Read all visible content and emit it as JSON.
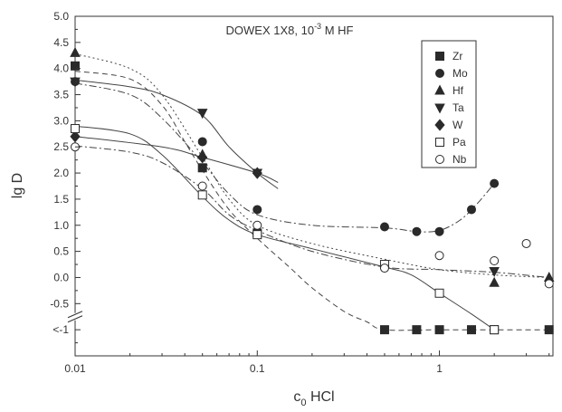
{
  "chart_data": {
    "type": "scatter",
    "annotation": {
      "main": "DOWEX 1X8, 10",
      "sup": "-3",
      "tail": " M HF"
    },
    "xlabel": {
      "main": "c",
      "sub": "0",
      "tail": " HCl"
    },
    "ylabel": "lg D",
    "x_scale": "log",
    "xlim": [
      0.01,
      4.2
    ],
    "ylim": [
      -1.5,
      5.0
    ],
    "x_ticks": [
      {
        "v": 0.01,
        "label": "0.01"
      },
      {
        "v": 0.1,
        "label": "0.1"
      },
      {
        "v": 1,
        "label": "1"
      }
    ],
    "y_ticks": [
      {
        "v": 5.0,
        "label": "5.0"
      },
      {
        "v": 4.5,
        "label": "4.5"
      },
      {
        "v": 4.0,
        "label": "4.0"
      },
      {
        "v": 3.5,
        "label": "3.5"
      },
      {
        "v": 3.0,
        "label": "3.0"
      },
      {
        "v": 2.5,
        "label": "2.5"
      },
      {
        "v": 2.0,
        "label": "2.0"
      },
      {
        "v": 1.5,
        "label": "1.5"
      },
      {
        "v": 1.0,
        "label": "1.0"
      },
      {
        "v": 0.5,
        "label": "0.5"
      },
      {
        "v": 0.0,
        "label": "0.0"
      },
      {
        "v": -0.5,
        "label": "-0.5"
      },
      {
        "v": -1.0,
        "label": "<-1"
      }
    ],
    "axis_break_y": -0.75,
    "legend_position": "top-right",
    "series": [
      {
        "name": "Zr",
        "marker": "square-filled",
        "points": [
          [
            0.01,
            4.05
          ],
          [
            0.05,
            2.1
          ],
          [
            0.1,
            0.85
          ],
          [
            0.5,
            -1.0
          ],
          [
            0.75,
            -1.0
          ],
          [
            1.0,
            -1.0
          ],
          [
            1.5,
            -1.0
          ],
          [
            2.0,
            -1.0
          ],
          [
            4.0,
            -1.0
          ]
        ],
        "curve": [
          [
            0.01,
            3.95
          ],
          [
            0.02,
            3.8
          ],
          [
            0.03,
            3.3
          ],
          [
            0.04,
            2.6
          ],
          [
            0.05,
            2.05
          ],
          [
            0.07,
            1.3
          ],
          [
            0.1,
            0.75
          ],
          [
            0.15,
            0.2
          ],
          [
            0.2,
            -0.2
          ],
          [
            0.3,
            -0.65
          ],
          [
            0.4,
            -0.85
          ],
          [
            0.5,
            -1.0
          ],
          [
            1.0,
            -1.0
          ],
          [
            2.0,
            -1.0
          ],
          [
            4.0,
            -1.0
          ]
        ],
        "dash": "6,4"
      },
      {
        "name": "Mo",
        "marker": "circle-filled",
        "points": [
          [
            0.01,
            3.75
          ],
          [
            0.05,
            2.6
          ],
          [
            0.1,
            1.3
          ],
          [
            0.5,
            0.97
          ],
          [
            0.75,
            0.88
          ],
          [
            1.0,
            0.88
          ],
          [
            1.5,
            1.3
          ],
          [
            2.0,
            1.8
          ]
        ],
        "curve": [
          [
            0.01,
            3.72
          ],
          [
            0.02,
            3.5
          ],
          [
            0.03,
            3.05
          ],
          [
            0.05,
            2.2
          ],
          [
            0.07,
            1.6
          ],
          [
            0.1,
            1.2
          ],
          [
            0.2,
            1.0
          ],
          [
            0.5,
            0.95
          ],
          [
            0.75,
            0.88
          ],
          [
            1.0,
            0.9
          ],
          [
            1.3,
            1.1
          ],
          [
            1.6,
            1.4
          ],
          [
            2.0,
            1.8
          ]
        ],
        "dash": "8,3,2,3"
      },
      {
        "name": "Hf",
        "marker": "triangle-up-filled",
        "points": [
          [
            0.01,
            4.3
          ],
          [
            0.05,
            2.35
          ],
          [
            2.0,
            -0.1
          ],
          [
            4.0,
            0.0
          ]
        ],
        "curve": [
          [
            0.01,
            4.28
          ],
          [
            0.02,
            4.0
          ],
          [
            0.03,
            3.5
          ],
          [
            0.05,
            2.3
          ],
          [
            0.07,
            1.5
          ],
          [
            0.1,
            1.0
          ],
          [
            0.2,
            0.65
          ],
          [
            0.5,
            0.35
          ],
          [
            1.0,
            0.15
          ],
          [
            2.0,
            0.05
          ],
          [
            4.0,
            0.0
          ]
        ],
        "dash": "2,3"
      },
      {
        "name": "Ta",
        "marker": "triangle-down-filled",
        "points": [
          [
            0.01,
            3.75
          ],
          [
            0.05,
            3.15
          ],
          [
            0.1,
            2.0
          ],
          [
            2.0,
            0.12
          ]
        ],
        "curve": [
          [
            0.01,
            3.78
          ],
          [
            0.02,
            3.65
          ],
          [
            0.03,
            3.5
          ],
          [
            0.05,
            3.1
          ],
          [
            0.07,
            2.5
          ],
          [
            0.1,
            2.0
          ],
          [
            0.13,
            1.7
          ]
        ],
        "dash": ""
      },
      {
        "name": "W",
        "marker": "diamond-filled",
        "points": [
          [
            0.01,
            2.7
          ],
          [
            0.05,
            2.3
          ],
          [
            0.1,
            2.0
          ]
        ],
        "curve": [
          [
            0.01,
            2.7
          ],
          [
            0.03,
            2.5
          ],
          [
            0.05,
            2.3
          ],
          [
            0.1,
            2.0
          ],
          [
            0.13,
            1.82
          ]
        ],
        "dash": ""
      },
      {
        "name": "Pa",
        "marker": "square-open",
        "points": [
          [
            0.01,
            2.85
          ],
          [
            0.05,
            1.58
          ],
          [
            0.1,
            0.82
          ],
          [
            0.5,
            0.25
          ],
          [
            1.0,
            -0.3
          ],
          [
            2.0,
            -1.0
          ]
        ],
        "curve": [
          [
            0.01,
            2.9
          ],
          [
            0.02,
            2.75
          ],
          [
            0.03,
            2.35
          ],
          [
            0.05,
            1.55
          ],
          [
            0.07,
            1.1
          ],
          [
            0.1,
            0.82
          ],
          [
            0.2,
            0.55
          ],
          [
            0.5,
            0.2
          ],
          [
            0.7,
            0.05
          ],
          [
            1.0,
            -0.3
          ],
          [
            1.5,
            -0.7
          ],
          [
            2.0,
            -1.0
          ]
        ],
        "dash": ""
      },
      {
        "name": "Nb",
        "marker": "circle-open",
        "points": [
          [
            0.01,
            2.5
          ],
          [
            0.05,
            1.75
          ],
          [
            0.1,
            1.0
          ],
          [
            0.5,
            0.18
          ],
          [
            1.0,
            0.42
          ],
          [
            2.0,
            0.32
          ],
          [
            3.0,
            0.65
          ],
          [
            4.0,
            -0.12
          ]
        ],
        "curve": [
          [
            0.01,
            2.52
          ],
          [
            0.02,
            2.4
          ],
          [
            0.03,
            2.2
          ],
          [
            0.05,
            1.7
          ],
          [
            0.07,
            1.2
          ],
          [
            0.1,
            0.9
          ],
          [
            0.2,
            0.5
          ],
          [
            0.5,
            0.2
          ],
          [
            1.0,
            0.15
          ],
          [
            2.0,
            0.1
          ],
          [
            4.0,
            0.0
          ]
        ],
        "dash": "8,3,2,3"
      }
    ]
  }
}
